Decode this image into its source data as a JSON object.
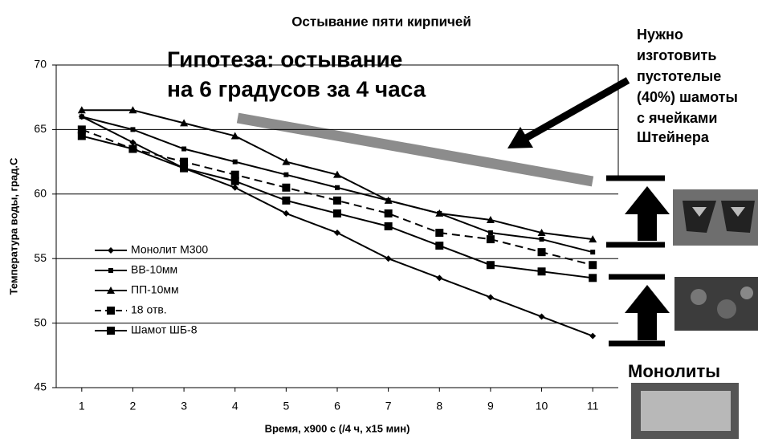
{
  "chart_data": {
    "type": "line",
    "title": "Остывание пяти кирпичей",
    "x_label": "Время, х900 с (/4 ч, х15 мин)",
    "y_label": "Температура воды, град.С",
    "x": [
      1,
      2,
      3,
      4,
      5,
      6,
      7,
      8,
      9,
      10,
      11
    ],
    "xlim": [
      0.5,
      11.5
    ],
    "xticks": [
      1,
      2,
      3,
      4,
      5,
      6,
      7,
      8,
      9,
      10,
      11
    ],
    "ylim": [
      45,
      70
    ],
    "yticks": [
      45,
      50,
      55,
      60,
      65,
      70
    ],
    "grid": true,
    "legend": "left",
    "series": [
      {
        "name": "Монолит М300",
        "color": "#000000",
        "marker": "diamond",
        "dash": false,
        "values": [
          66,
          64,
          62,
          60.5,
          58.5,
          57,
          55,
          53.5,
          52,
          50.5,
          49
        ]
      },
      {
        "name": "ВВ-10мм",
        "color": "#000000",
        "marker": "small-square",
        "dash": false,
        "values": [
          66,
          65,
          63.5,
          62.5,
          61.5,
          60.5,
          59.5,
          58.5,
          57,
          56.5,
          55.5
        ]
      },
      {
        "name": "ПП-10мм",
        "color": "#000000",
        "marker": "triangle",
        "dash": false,
        "values": [
          66.5,
          66.5,
          65.5,
          64.5,
          62.5,
          61.5,
          59.5,
          58.5,
          58,
          57,
          56.5
        ]
      },
      {
        "name": "18 отв.",
        "color": "#000000",
        "marker": "square",
        "dash": true,
        "values": [
          65,
          63.5,
          62.5,
          61.5,
          60.5,
          59.5,
          58.5,
          57,
          56.5,
          55.5,
          54.5
        ]
      },
      {
        "name": "Шамот ШБ-8",
        "color": "#000000",
        "marker": "square",
        "dash": false,
        "values": [
          64.5,
          63.5,
          62,
          61,
          59.5,
          58.5,
          57.5,
          56,
          54.5,
          54,
          53.5
        ]
      }
    ],
    "annotations": {
      "hypothesis": [
        "Гипотеза: остывание",
        "на 6 градусов за 4 часа"
      ],
      "note": [
        "Нужно",
        "изготовить",
        "пустотелые",
        "(40%) шамоты",
        "с ячейками",
        "Штейнера"
      ],
      "monolith_label": "Монолиты"
    }
  }
}
